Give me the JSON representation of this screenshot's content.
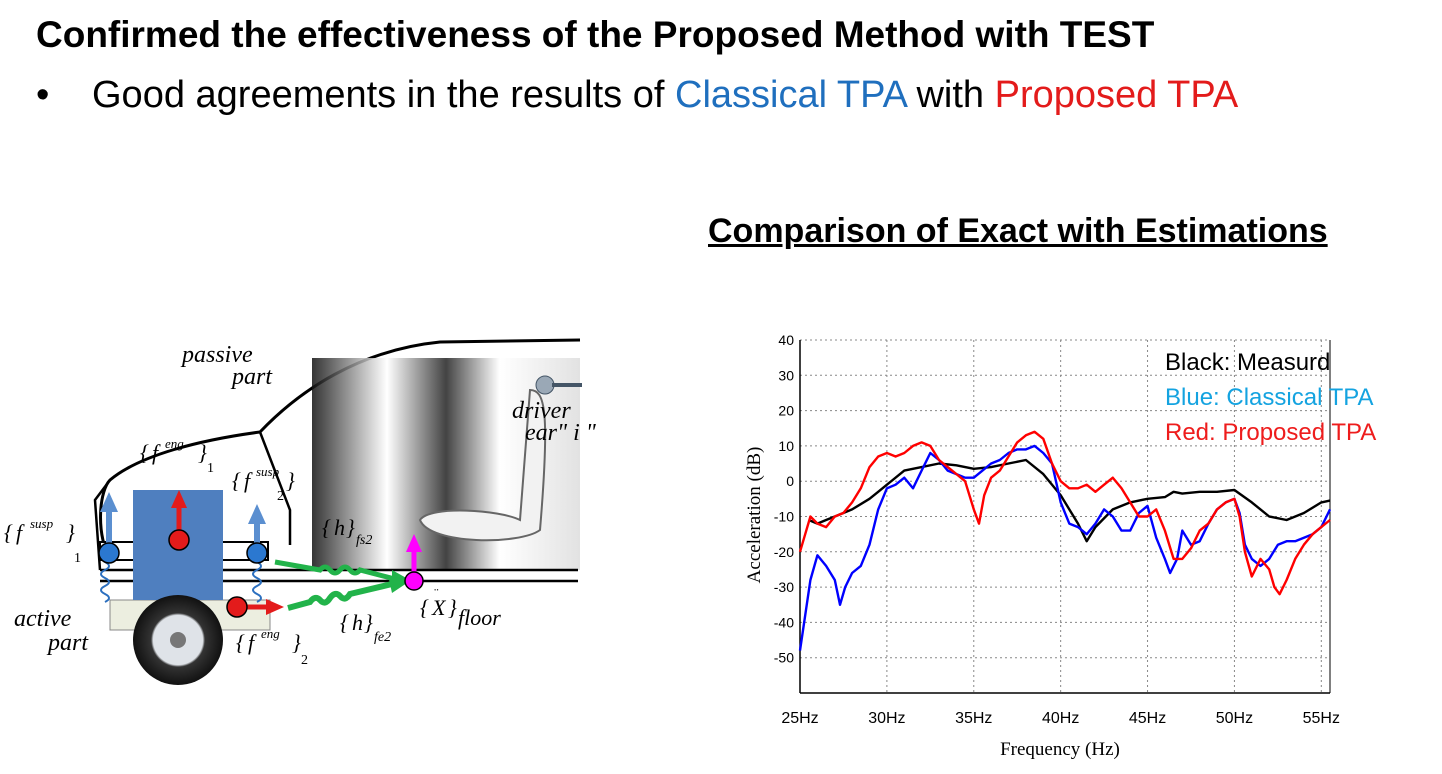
{
  "heading": "Confirmed the effectiveness of the Proposed Method with TEST",
  "bullet": {
    "marker": "•",
    "prefix": "Good agreements in the results of ",
    "classical": "Classical TPA",
    "middle": " with ",
    "proposed": "Proposed TPA"
  },
  "colors": {
    "classical": "#1f6fbe",
    "proposed": "#e31b1b"
  },
  "diagram": {
    "passive": "passive",
    "part": "part",
    "active": "active",
    "driver": "driver",
    "ear": "ear\" i \"",
    "f": "f",
    "eng": "eng",
    "susp": "susp",
    "h": "h",
    "fs2": "fs2",
    "fe2": "fe2",
    "sub1": "1",
    "sub2": "2",
    "xfloor_x": "X",
    "xfloor_sub": "floor"
  },
  "chart_data": {
    "type": "line",
    "title": "Comparison of Exact with Estimations",
    "xlabel": "Frequency (Hz)",
    "ylabel": "Acceleration (dB)",
    "xlim": [
      25,
      55.5
    ],
    "ylim": [
      -60,
      40
    ],
    "xticks": [
      25,
      30,
      35,
      40,
      45,
      50,
      55
    ],
    "xtick_labels": [
      "25Hz",
      "30Hz",
      "35Hz",
      "40Hz",
      "45Hz",
      "50Hz",
      "55Hz"
    ],
    "yticks": [
      40,
      30,
      20,
      10,
      0,
      -10,
      -20,
      -30,
      -40,
      -50
    ],
    "ytick_labels": [
      "40",
      "30",
      "20",
      "10",
      "0",
      "-10",
      "-20",
      "-30",
      "-40",
      "-50"
    ],
    "grid": true,
    "legend": [
      "Black: Measurd",
      "Blue: Classical TPA",
      "Red: Proposed TPA"
    ],
    "legend_colors": [
      "#000000",
      "#14a3e0",
      "#ee1c1c"
    ],
    "legend_placement": "top-right",
    "series": [
      {
        "color": "#000000",
        "x": [
          25.5,
          26,
          26.5,
          27,
          28,
          29,
          29.5,
          30,
          31,
          32,
          33,
          34,
          35,
          36,
          37,
          38,
          39,
          40,
          41,
          41.5,
          42,
          43,
          44,
          45,
          46,
          46.5,
          47,
          48,
          49,
          50,
          51,
          52,
          53,
          54,
          55,
          55.5
        ],
        "y": [
          -11,
          -12,
          -11,
          -10,
          -8,
          -5,
          -3,
          -1,
          3,
          4,
          5,
          4.5,
          3.5,
          4,
          5,
          6,
          2,
          -4,
          -12,
          -17,
          -13,
          -8,
          -6,
          -5,
          -4.5,
          -3,
          -3.5,
          -3,
          -3,
          -2.5,
          -6,
          -10,
          -11,
          -9,
          -6,
          -5.5
        ]
      },
      {
        "color": "#0000ff",
        "x": [
          25,
          25.3,
          25.6,
          26,
          26.5,
          27,
          27.3,
          27.6,
          28,
          28.5,
          29,
          29.5,
          30,
          30.5,
          31,
          31.5,
          32,
          32.5,
          33,
          33.5,
          34,
          34.5,
          35,
          35.5,
          36,
          36.5,
          37,
          37.5,
          38,
          38.5,
          39,
          39.5,
          40,
          40.5,
          41,
          41.5,
          42,
          42.5,
          43,
          43.5,
          44,
          44.5,
          45,
          45.5,
          46,
          46.3,
          46.7,
          47,
          47.5,
          48,
          48.5,
          49,
          49.5,
          50,
          50.3,
          50.6,
          51,
          51.5,
          52,
          52.5,
          53,
          53.5,
          54,
          54.5,
          55,
          55.5
        ],
        "y": [
          -48,
          -38,
          -28,
          -21,
          -24,
          -28,
          -35,
          -30,
          -26,
          -24,
          -18,
          -8,
          -2,
          -1,
          1,
          -2,
          3,
          8,
          6,
          3,
          2,
          1,
          1,
          3,
          5,
          6,
          8,
          9,
          9,
          10,
          8,
          5,
          -6,
          -12,
          -13,
          -15,
          -12,
          -8,
          -10,
          -14,
          -14,
          -9,
          -7,
          -16,
          -22,
          -26,
          -22,
          -14,
          -18,
          -17,
          -12,
          -8,
          -6,
          -5,
          -9,
          -18,
          -22,
          -24,
          -22,
          -18,
          -17,
          -17,
          -16,
          -15,
          -13,
          -8
        ]
      },
      {
        "color": "#ff0000",
        "x": [
          25,
          25.3,
          25.6,
          26,
          26.5,
          27,
          27.5,
          28,
          28.5,
          29,
          29.5,
          30,
          30.5,
          31,
          31.5,
          32,
          32.5,
          33,
          33.5,
          34,
          34.5,
          35,
          35.3,
          35.6,
          36,
          36.5,
          37,
          37.5,
          38,
          38.5,
          39,
          39.5,
          40,
          40.5,
          41,
          41.5,
          42,
          42.5,
          43,
          43.5,
          44,
          44.5,
          45,
          45.5,
          46,
          46.5,
          47,
          47.5,
          48,
          48.5,
          49,
          49.5,
          50,
          50.3,
          50.6,
          51,
          51.5,
          52,
          52.3,
          52.6,
          53,
          53.5,
          54,
          54.5,
          55,
          55.5
        ],
        "y": [
          -20,
          -15,
          -10,
          -12,
          -13,
          -10,
          -9,
          -6,
          -2,
          4,
          7,
          8,
          7,
          8,
          10,
          11,
          10,
          6,
          4,
          2,
          0,
          -8,
          -12,
          -4,
          1,
          3,
          7,
          11,
          13,
          14,
          12,
          5,
          0,
          -2,
          -2,
          -1,
          -3,
          -1,
          1,
          -2,
          -6,
          -10,
          -10,
          -8,
          -14,
          -22,
          -22,
          -19,
          -14,
          -12,
          -8,
          -6,
          -5,
          -10,
          -20,
          -27,
          -22,
          -25,
          -30,
          -32,
          -28,
          -22,
          -18,
          -15,
          -13,
          -11
        ]
      }
    ]
  }
}
